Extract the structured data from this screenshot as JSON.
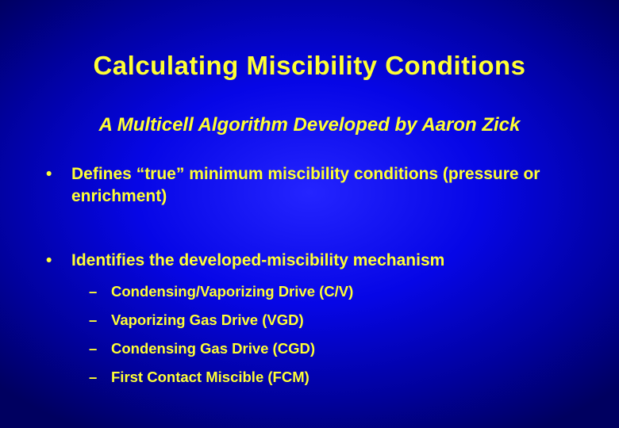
{
  "slide": {
    "title": "Calculating Miscibility Conditions",
    "subtitle": "A Multicell Algorithm Developed by Aaron Zick",
    "bullets": [
      {
        "text": "Defines “true” minimum miscibility conditions (pressure or enrichment)",
        "children": []
      },
      {
        "text": "Identifies the developed-miscibility mechanism",
        "children": [
          "Condensing/Vaporizing Drive (C/V)",
          "Vaporizing Gas Drive (VGD)",
          "Condensing Gas Drive (CGD)",
          "First Contact Miscible (FCM)"
        ]
      }
    ],
    "markers": {
      "l1": "•",
      "l2": "–"
    },
    "colors": {
      "text": "#ffff33",
      "bg_center": "#2424ff",
      "bg_edge": "#000060"
    }
  }
}
